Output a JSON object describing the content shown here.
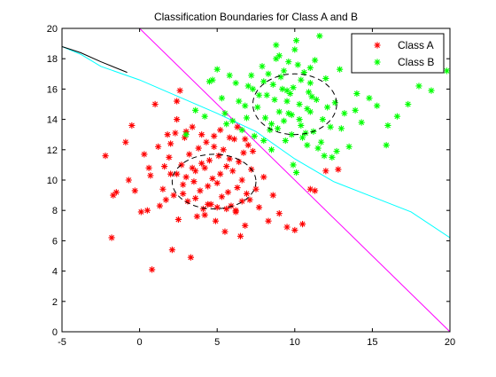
{
  "chart_data": {
    "type": "scatter",
    "title": "Classification Boundaries for Class A and B",
    "xlabel": "",
    "ylabel": "",
    "xlim": [
      -5,
      20
    ],
    "ylim": [
      0,
      20
    ],
    "xticks": [
      -5,
      0,
      5,
      10,
      15,
      20
    ],
    "yticks": [
      0,
      2,
      4,
      6,
      8,
      10,
      12,
      14,
      16,
      18,
      20
    ],
    "grid": false,
    "legend": {
      "placement": "top-right",
      "entries": [
        "Class A",
        "Class B"
      ]
    },
    "series": [
      {
        "name": "Class A",
        "marker": "*",
        "color": "#ff0000",
        "x": [
          -2.2,
          -1.8,
          -1.5,
          -0.9,
          -0.7,
          -0.5,
          -0.3,
          0.1,
          0.3,
          0.5,
          0.7,
          0.8,
          1.0,
          1.2,
          1.3,
          1.5,
          1.6,
          1.7,
          1.9,
          2.0,
          2.1,
          2.2,
          2.3,
          2.4,
          2.5,
          2.6,
          2.7,
          2.8,
          2.9,
          3.0,
          3.1,
          3.2,
          3.3,
          3.4,
          3.5,
          3.6,
          3.7,
          3.8,
          3.9,
          4.0,
          4.1,
          4.2,
          4.3,
          4.4,
          4.5,
          4.6,
          4.7,
          4.8,
          4.9,
          5.0,
          5.1,
          5.2,
          5.3,
          5.4,
          5.5,
          5.6,
          5.7,
          5.8,
          5.9,
          6.0,
          6.1,
          6.2,
          6.3,
          6.4,
          6.5,
          6.6,
          6.7,
          6.8,
          6.9,
          7.0,
          7.1,
          7.2,
          7.3,
          7.5,
          7.7,
          8.0,
          8.3,
          8.6,
          9.0,
          9.5,
          10.0,
          10.5,
          11.0,
          11.3,
          12.0,
          12.8,
          2.4,
          3.0,
          4.0,
          4.8,
          5.2,
          5.8,
          6.3,
          6.8,
          3.6,
          4.4,
          5.0,
          5.6,
          6.2,
          6.6,
          2.0,
          2.8,
          3.4,
          4.2,
          1.8,
          0.6,
          -1.7,
          2.4
        ],
        "y": [
          11.6,
          6.2,
          9.2,
          12.5,
          10.0,
          13.6,
          9.3,
          7.9,
          11.7,
          8.0,
          10.3,
          4.1,
          15.0,
          12.2,
          8.3,
          9.4,
          10.9,
          8.7,
          11.5,
          12.4,
          5.4,
          9.0,
          13.1,
          10.4,
          7.4,
          15.9,
          11.0,
          9.7,
          12.8,
          10.2,
          8.6,
          11.7,
          4.9,
          13.5,
          9.9,
          10.6,
          7.6,
          12.1,
          9.3,
          11.1,
          8.1,
          10.8,
          12.5,
          9.6,
          11.3,
          8.4,
          10.1,
          12.2,
          7.3,
          9.8,
          11.6,
          10.4,
          8.9,
          12.0,
          6.6,
          10.9,
          9.2,
          11.4,
          8.3,
          10.6,
          12.7,
          7.9,
          9.5,
          11.2,
          6.3,
          10.0,
          11.8,
          7.0,
          9.1,
          12.3,
          8.7,
          10.7,
          11.9,
          9.4,
          8.2,
          10.2,
          7.3,
          9.0,
          7.8,
          6.9,
          6.7,
          7.1,
          9.4,
          9.3,
          10.6,
          10.7,
          14.0,
          13.2,
          13.0,
          12.9,
          13.3,
          12.8,
          13.5,
          12.7,
          8.8,
          8.4,
          8.2,
          8.1,
          8.0,
          8.6,
          10.4,
          9.1,
          10.8,
          7.7,
          13.0,
          10.8,
          9.0,
          15.2
        ]
      },
      {
        "name": "Class B",
        "marker": "*",
        "color": "#00ff00",
        "x": [
          3.0,
          3.6,
          4.2,
          4.7,
          5.3,
          5.8,
          6.4,
          6.9,
          7.3,
          7.6,
          7.9,
          8.2,
          8.4,
          8.6,
          8.8,
          9.0,
          9.1,
          9.3,
          9.5,
          9.6,
          9.8,
          9.9,
          10.1,
          10.3,
          10.4,
          10.6,
          10.8,
          11.0,
          11.2,
          11.4,
          11.6,
          11.8,
          12.0,
          12.3,
          12.6,
          12.9,
          13.2,
          13.5,
          13.9,
          14.3,
          14.8,
          15.3,
          15.9,
          16.6,
          17.3,
          18.0,
          18.8,
          19.8,
          5.0,
          5.6,
          6.2,
          6.8,
          7.4,
          8.0,
          8.5,
          9.0,
          9.4,
          9.7,
          10.2,
          10.7,
          11.1,
          11.5,
          12.1,
          12.7,
          7.7,
          8.3,
          8.9,
          9.2,
          9.6,
          10.0,
          10.5,
          10.9,
          11.3,
          8.1,
          8.7,
          9.3,
          9.8,
          10.4,
          11.0,
          11.7,
          6.6,
          7.2,
          8.0,
          8.8,
          9.5,
          10.3,
          11.0,
          4.5,
          5.5,
          6.0,
          7.0,
          12.4,
          13.0,
          9.9,
          10.8,
          11.9,
          16.0,
          14.0,
          8.5,
          10.1
        ],
        "y": [
          13.0,
          14.6,
          14.2,
          16.6,
          15.4,
          16.9,
          15.2,
          14.1,
          16.0,
          14.8,
          17.5,
          15.6,
          13.3,
          16.3,
          18.9,
          14.5,
          16.8,
          13.9,
          15.9,
          17.8,
          14.3,
          16.1,
          19.2,
          15.0,
          13.6,
          17.1,
          14.7,
          16.4,
          13.2,
          15.3,
          19.5,
          14.0,
          16.7,
          13.5,
          15.1,
          17.3,
          14.4,
          12.2,
          14.6,
          13.8,
          15.4,
          14.9,
          12.3,
          14.2,
          15.0,
          16.2,
          15.9,
          17.2,
          17.3,
          13.7,
          16.4,
          14.9,
          12.9,
          16.5,
          13.7,
          18.2,
          12.6,
          15.7,
          17.6,
          13.1,
          15.5,
          12.1,
          14.8,
          11.9,
          15.6,
          17.0,
          13.4,
          16.0,
          14.4,
          18.6,
          12.8,
          15.8,
          17.9,
          14.1,
          15.3,
          17.2,
          13.0,
          16.6,
          14.5,
          12.5,
          13.3,
          16.9,
          12.6,
          18.0,
          15.2,
          14.0,
          17.4,
          16.5,
          14.4,
          13.9,
          16.2,
          11.5,
          13.4,
          11.0,
          12.3,
          11.6,
          13.6,
          15.7,
          12.0,
          10.5
        ]
      }
    ],
    "boundaries": [
      {
        "name": "",
        "color": "#ff00ff",
        "style": "solid",
        "x": [
          0,
          20
        ],
        "y": [
          20,
          0
        ]
      },
      {
        "name": "",
        "color": "#00ffff",
        "style": "solid",
        "x": [
          -5,
          -3.8,
          -2.5,
          0,
          2.5,
          5,
          7.5,
          10,
          12.5,
          15,
          17.5,
          20
        ],
        "y": [
          18.8,
          18.3,
          17.5,
          16.6,
          15.5,
          14.4,
          13.2,
          11.4,
          9.9,
          8.9,
          7.9,
          6.2
        ]
      },
      {
        "name": "",
        "color": "#000000",
        "style": "solid",
        "x": [
          -5,
          -3.8,
          -2.5,
          -0.8
        ],
        "y": [
          18.8,
          18.4,
          17.8,
          17.1
        ]
      }
    ],
    "contours": [
      {
        "color": "#000000",
        "style": "dashed",
        "cx": 4.8,
        "cy": 9.9,
        "rx": 2.7,
        "ry": 1.8
      },
      {
        "color": "#000000",
        "style": "dashed",
        "cx": 10.0,
        "cy": 15.0,
        "rx": 2.7,
        "ry": 2.0
      }
    ]
  }
}
